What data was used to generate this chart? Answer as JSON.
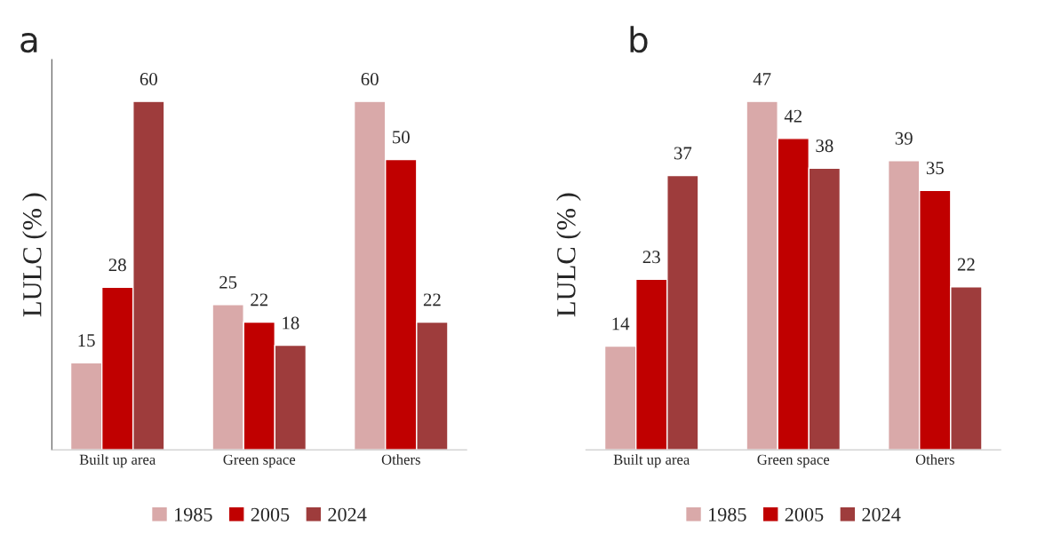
{
  "chart_data": [
    {
      "type": "bar",
      "title": "a",
      "ylabel": "LULC (% )",
      "categories": [
        "Built up area",
        "Green space",
        "Others"
      ],
      "data_labels": true,
      "legend": "bottom",
      "tick_labels": "x",
      "grid": false,
      "series": [
        {
          "name": "1985",
          "color": "#d9a9a9",
          "values": [
            15,
            25,
            60
          ]
        },
        {
          "name": "2005",
          "color": "#c00000",
          "values": [
            28,
            22,
            50
          ]
        },
        {
          "name": "2024",
          "color": "#9e3c3c",
          "values": [
            60,
            18,
            22
          ]
        }
      ]
    },
    {
      "type": "bar",
      "title": "b",
      "ylabel": "LULC (% )",
      "categories": [
        "Built up area",
        "Green space",
        "Others"
      ],
      "data_labels": true,
      "legend": "bottom",
      "tick_labels": "x",
      "grid": false,
      "series": [
        {
          "name": "1985",
          "color": "#d9a9a9",
          "values": [
            14,
            47,
            39
          ]
        },
        {
          "name": "2005",
          "color": "#c00000",
          "values": [
            23,
            42,
            35
          ]
        },
        {
          "name": "2024",
          "color": "#9e3c3c",
          "values": [
            37,
            38,
            22
          ]
        }
      ]
    }
  ]
}
